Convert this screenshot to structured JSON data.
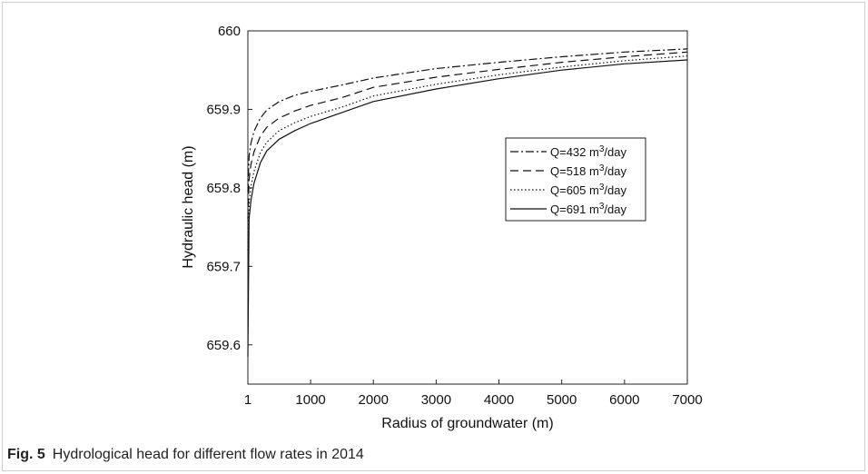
{
  "caption": {
    "label": "Fig. 5",
    "text": "Hydrological head for different flow rates in 2014"
  },
  "chart_data": {
    "type": "line",
    "xlabel": "Radius of groundwater (m)",
    "ylabel": "Hydraulic head (m)",
    "xlim": [
      1,
      7000
    ],
    "ylim": [
      659.55,
      660
    ],
    "xticks": [
      1,
      1000,
      2000,
      3000,
      4000,
      5000,
      6000,
      7000
    ],
    "yticks": [
      659.6,
      659.7,
      659.8,
      659.9,
      660
    ],
    "ytick_labels": [
      "659.6",
      "659.7",
      "659.8",
      "659.9",
      "660"
    ],
    "legend_position": "inside-right",
    "x": [
      1,
      20,
      50,
      100,
      200,
      300,
      500,
      750,
      1000,
      1500,
      2000,
      3000,
      4000,
      5000,
      6000,
      7000
    ],
    "series": [
      {
        "name": "Q=432 m³/day",
        "legend_text": "Q=432 m",
        "legend_sup": "3",
        "legend_suffix": "/day",
        "style": "dashdot",
        "values": [
          659.795,
          659.84,
          659.857,
          659.872,
          659.889,
          659.899,
          659.91,
          659.918,
          659.923,
          659.931,
          659.94,
          659.952,
          659.96,
          659.967,
          659.973,
          659.977
        ]
      },
      {
        "name": "Q=518 m³/day",
        "legend_text": "Q=518 m",
        "legend_sup": "3",
        "legend_suffix": "/day",
        "style": "dashed",
        "values": [
          659.76,
          659.81,
          659.83,
          659.846,
          659.866,
          659.877,
          659.889,
          659.898,
          659.905,
          659.915,
          659.928,
          659.941,
          659.951,
          659.96,
          659.967,
          659.973
        ]
      },
      {
        "name": "Q=605 m³/day",
        "legend_text": "Q=605 m",
        "legend_sup": "3",
        "legend_suffix": "/day",
        "style": "dotted",
        "values": [
          659.72,
          659.78,
          659.802,
          659.821,
          659.845,
          659.858,
          659.873,
          659.883,
          659.891,
          659.903,
          659.917,
          659.932,
          659.944,
          659.954,
          659.962,
          659.968
        ]
      },
      {
        "name": "Q=691 m³/day",
        "legend_text": "Q=691 m",
        "legend_sup": "3",
        "legend_suffix": "/day",
        "style": "solid",
        "values": [
          659.585,
          659.76,
          659.784,
          659.806,
          659.832,
          659.847,
          659.862,
          659.873,
          659.882,
          659.896,
          659.91,
          659.926,
          659.939,
          659.95,
          659.958,
          659.963
        ]
      }
    ]
  }
}
